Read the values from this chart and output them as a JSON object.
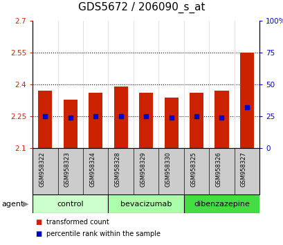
{
  "title": "GDS5672 / 206090_s_at",
  "samples": [
    "GSM958322",
    "GSM958323",
    "GSM958324",
    "GSM958328",
    "GSM958329",
    "GSM958330",
    "GSM958325",
    "GSM958326",
    "GSM958327"
  ],
  "transformed_counts": [
    2.37,
    2.33,
    2.36,
    2.39,
    2.36,
    2.34,
    2.36,
    2.37,
    2.55
  ],
  "percentile_ranks": [
    25,
    24,
    25,
    25,
    25,
    24,
    25,
    24,
    32
  ],
  "ylim_left": [
    2.1,
    2.7
  ],
  "ylim_right": [
    0,
    100
  ],
  "yticks_left": [
    2.1,
    2.25,
    2.4,
    2.55,
    2.7
  ],
  "yticks_right": [
    0,
    25,
    50,
    75,
    100
  ],
  "ytick_labels_left": [
    "2.1",
    "2.25",
    "2.4",
    "2.55",
    "2.7"
  ],
  "ytick_labels_right": [
    "0",
    "25",
    "50",
    "75",
    "100%"
  ],
  "bar_color": "#cc2200",
  "dot_color": "#0000cc",
  "groups": [
    {
      "label": "control",
      "indices": [
        0,
        1,
        2
      ],
      "color": "#ccffcc"
    },
    {
      "label": "bevacizumab",
      "indices": [
        3,
        4,
        5
      ],
      "color": "#aaffaa"
    },
    {
      "label": "dibenzazepine",
      "indices": [
        6,
        7,
        8
      ],
      "color": "#44dd44"
    }
  ],
  "legend_items": [
    {
      "label": "transformed count",
      "color": "#cc2200"
    },
    {
      "label": "percentile rank within the sample",
      "color": "#0000cc"
    }
  ],
  "agent_label": "agent",
  "bar_width": 0.55,
  "background_color": "#ffffff",
  "plot_bg_color": "#ffffff",
  "sample_area_color": "#cccccc",
  "title_fontsize": 11,
  "tick_fontsize": 7.5
}
